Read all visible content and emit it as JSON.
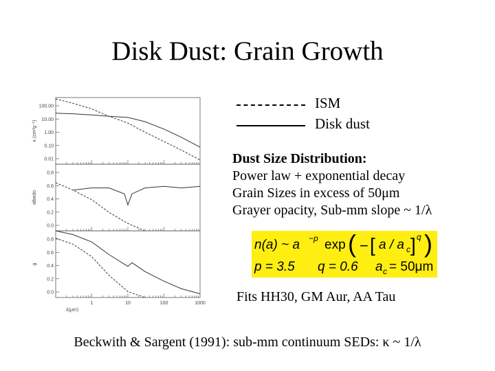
{
  "slide": {
    "title": "Disk Dust: Grain Growth",
    "legend": [
      {
        "label": "ISM",
        "style": "dashed"
      },
      {
        "label": "Disk dust",
        "style": "solid"
      }
    ],
    "distribution": {
      "heading": "Dust Size Distribution:",
      "lines": [
        "Power law + exponential decay",
        "Grain Sizes in excess of 50μm",
        "Grayer opacity, Sub-mm slope ~ 1/λ"
      ]
    },
    "formula": {
      "line1_lhs": "n(a) ~ a",
      "line1_exp": "−p",
      "line1_rhs": "exp",
      "bracket_text": "a / a",
      "bracket_sub": "c",
      "bracket_exp": "q",
      "p": "p = 3.5",
      "q": "q = 0.6",
      "ac": "a",
      "ac_sub": "c",
      "ac_val": "= 50μm",
      "background": "#ffee11"
    },
    "fits": "Fits HH30, GM Aur, AA Tau",
    "footer": "Beckwith & Sargent (1991): sub-mm continuum SEDs: κ ~ 1/λ"
  },
  "chart_data": {
    "type": "line",
    "xlabel": "λ(μm)",
    "xscale": "log",
    "xlim": [
      0.1,
      1000
    ],
    "x_ticks": [
      "1",
      "10",
      "100",
      "1000"
    ],
    "panels": [
      {
        "ylabel": "κ (cm²g⁻¹)",
        "yscale": "log",
        "y_ticks": [
          "100.00",
          "10.00",
          "1.00",
          "0.10",
          "0.01"
        ],
        "series": [
          {
            "style": "dashed",
            "x": [
              0.1,
              0.3,
              1,
              3,
              10,
              30,
              100,
              300,
              1000
            ],
            "y": [
              200,
              100,
              40,
              12,
              4,
              0.9,
              0.2,
              0.05,
              0.01
            ]
          },
          {
            "style": "solid",
            "x": [
              0.1,
              0.3,
              1,
              3,
              10,
              30,
              100,
              300,
              1000
            ],
            "y": [
              20,
              18,
              15,
              12,
              10,
              5,
              1.5,
              0.4,
              0.08
            ]
          }
        ]
      },
      {
        "ylabel": "albedo",
        "y_ticks": [
          "0.8",
          "0.6",
          "0.4",
          "0.2",
          "0.0"
        ],
        "series": [
          {
            "style": "dashed",
            "x": [
              0.1,
              0.3,
              1,
              3,
              10,
              30
            ],
            "y": [
              0.65,
              0.55,
              0.42,
              0.25,
              0.1,
              0.0
            ]
          },
          {
            "style": "solid",
            "x": [
              0.3,
              1,
              3,
              8,
              10,
              13,
              30,
              100,
              300,
              1000
            ],
            "y": [
              0.55,
              0.58,
              0.58,
              0.5,
              0.35,
              0.5,
              0.58,
              0.6,
              0.58,
              0.6
            ]
          }
        ]
      },
      {
        "ylabel": "g",
        "y_ticks": [
          "0.8",
          "0.6",
          "0.4",
          "0.2",
          "0.0"
        ],
        "series": [
          {
            "style": "dashed",
            "x": [
              0.1,
              0.3,
              1,
              3,
              10,
              30
            ],
            "y": [
              0.8,
              0.72,
              0.55,
              0.3,
              0.08,
              0.0
            ]
          },
          {
            "style": "solid",
            "x": [
              0.1,
              0.3,
              1,
              3,
              10,
              13,
              30,
              100,
              300,
              1000
            ],
            "y": [
              0.9,
              0.85,
              0.75,
              0.58,
              0.42,
              0.47,
              0.35,
              0.22,
              0.12,
              0.05
            ]
          }
        ]
      }
    ]
  }
}
